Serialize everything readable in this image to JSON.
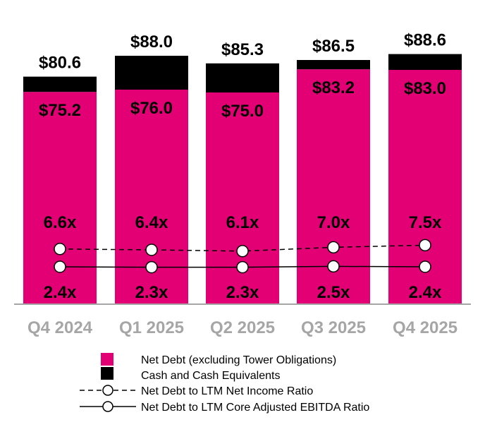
{
  "chart_data": {
    "type": "bar",
    "stacked": true,
    "categories": [
      "Q4 2024",
      "Q1 2025",
      "Q2 2025",
      "Q3 2025",
      "Q4 2025"
    ],
    "series": [
      {
        "name": "Net Debt (excluding Tower Obligations)",
        "color": "#E20074",
        "values": [
          75.2,
          76.0,
          75.0,
          83.2,
          83.0
        ],
        "labels": [
          "$75.2",
          "$76.0",
          "$75.0",
          "$83.2",
          "$83.0"
        ]
      },
      {
        "name": "Cash and Cash Equivalents",
        "color": "#000000",
        "values": [
          5.4,
          12.0,
          10.3,
          3.3,
          5.6
        ]
      }
    ],
    "totals": [
      80.6,
      88.0,
      85.3,
      86.5,
      88.6
    ],
    "total_labels": [
      "$80.6",
      "$88.0",
      "$85.3",
      "$86.5",
      "$88.6"
    ],
    "lines": [
      {
        "name": "Net Debt to LTM Net Income Ratio",
        "style": "dashed",
        "values": [
          6.6,
          6.4,
          6.1,
          7.0,
          7.5
        ],
        "labels": [
          "6.6x",
          "6.4x",
          "6.1x",
          "7.0x",
          "7.5x"
        ]
      },
      {
        "name": "Net Debt to LTM Core Adjusted EBITDA Ratio",
        "style": "solid",
        "values": [
          2.4,
          2.3,
          2.3,
          2.5,
          2.4
        ],
        "labels": [
          "2.4x",
          "2.3x",
          "2.3x",
          "2.5x",
          "2.4x"
        ]
      }
    ],
    "axis_label_color": "#A6A6A6",
    "grid": false,
    "legend_position": "bottom"
  }
}
